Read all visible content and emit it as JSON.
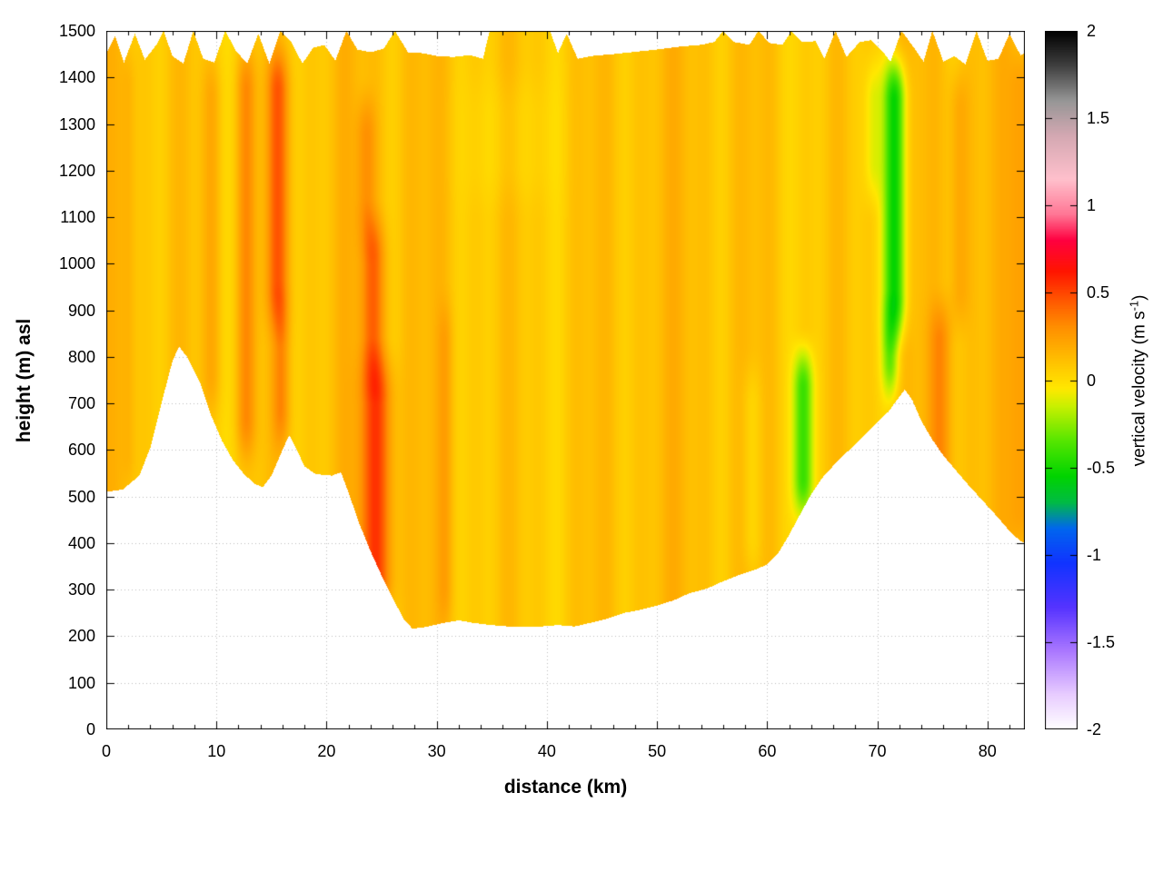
{
  "chart_data": {
    "type": "heatmap",
    "title": "",
    "xlabel": "distance (km)",
    "ylabel": "height (m) asl",
    "x_range": [
      0,
      83.4
    ],
    "y_range": [
      0,
      1500
    ],
    "x_tick_values": [
      0,
      10,
      20,
      30,
      40,
      50,
      60,
      70,
      80
    ],
    "x_tick_labels": [
      "0",
      "10",
      "20",
      "30",
      "40",
      "50",
      "60",
      "70",
      "80"
    ],
    "x_minor_step": 2,
    "y_tick_values": [
      0,
      100,
      200,
      300,
      400,
      500,
      600,
      700,
      800,
      900,
      1000,
      1100,
      1200,
      1300,
      1400,
      1500
    ],
    "y_tick_labels": [
      "0",
      "100",
      "200",
      "300",
      "400",
      "500",
      "600",
      "700",
      "800",
      "900",
      "1000",
      "1100",
      "1200",
      "1300",
      "1400",
      "1500"
    ],
    "grid": {
      "show": true,
      "color": "#bcbcbc",
      "style": "dotted"
    },
    "colorbar": {
      "label_prefix": "vertical velocity (m s",
      "label_sup": "-1",
      "label_suffix": ")",
      "range": [
        -2,
        2
      ],
      "tick_values": [
        -2,
        -1.5,
        -1,
        -0.5,
        0,
        0.5,
        1,
        1.5,
        2
      ],
      "tick_labels": [
        "-2",
        "-1.5",
        "-1",
        "-0.5",
        "0",
        "0.5",
        "1",
        "1.5",
        "2"
      ]
    },
    "palette_stops": [
      [
        -2.0,
        "#ffffff"
      ],
      [
        -1.8,
        "#e8ccff"
      ],
      [
        -1.55,
        "#aa77ff"
      ],
      [
        -1.3,
        "#5533ff"
      ],
      [
        -1.05,
        "#1133ff"
      ],
      [
        -0.85,
        "#0066ee"
      ],
      [
        -0.7,
        "#00bb44"
      ],
      [
        -0.55,
        "#00d400"
      ],
      [
        -0.35,
        "#55e600"
      ],
      [
        -0.15,
        "#c8f000"
      ],
      [
        -0.05,
        "#ffe800"
      ],
      [
        0.1,
        "#ffc300"
      ],
      [
        0.3,
        "#ff9000"
      ],
      [
        0.45,
        "#ff5a00"
      ],
      [
        0.62,
        "#ff1500"
      ],
      [
        0.8,
        "#ff0040"
      ],
      [
        0.95,
        "#ff7795"
      ],
      [
        1.15,
        "#ffc0cc"
      ],
      [
        1.4,
        "#d4a8b2"
      ],
      [
        1.6,
        "#969696"
      ],
      [
        1.8,
        "#3f3f3f"
      ],
      [
        2.0,
        "#000000"
      ]
    ],
    "field": {
      "background_value": 0.1,
      "stripe_waves": [
        {
          "freq": 0.85,
          "phase": 1.7,
          "amp": 0.045
        },
        {
          "freq": 2.1,
          "phase": 0.4,
          "amp": 0.028
        },
        {
          "freq": 0.23,
          "phase": 2.2,
          "amp": 0.025
        }
      ],
      "terrain_profile": [
        [
          0,
          510
        ],
        [
          1.5,
          515
        ],
        [
          3,
          545
        ],
        [
          4,
          605
        ],
        [
          5,
          700
        ],
        [
          6,
          790
        ],
        [
          6.6,
          822
        ],
        [
          7.4,
          798
        ],
        [
          8.5,
          745
        ],
        [
          9.5,
          675
        ],
        [
          10.5,
          620
        ],
        [
          11.5,
          578
        ],
        [
          12.5,
          548
        ],
        [
          13.5,
          527
        ],
        [
          14.2,
          520
        ],
        [
          15,
          545
        ],
        [
          16,
          600
        ],
        [
          16.6,
          632
        ],
        [
          17.2,
          605
        ],
        [
          18,
          565
        ],
        [
          19,
          548
        ],
        [
          20.5,
          545
        ],
        [
          21.3,
          552
        ],
        [
          22,
          508
        ],
        [
          23,
          440
        ],
        [
          24,
          382
        ],
        [
          25,
          330
        ],
        [
          26,
          282
        ],
        [
          27,
          237
        ],
        [
          27.8,
          216
        ],
        [
          29,
          220
        ],
        [
          30.5,
          228
        ],
        [
          32,
          234
        ],
        [
          33.5,
          228
        ],
        [
          35,
          224
        ],
        [
          37,
          220
        ],
        [
          39,
          220
        ],
        [
          41,
          224
        ],
        [
          42.5,
          221
        ],
        [
          44,
          229
        ],
        [
          45.5,
          238
        ],
        [
          47,
          250
        ],
        [
          48.5,
          257
        ],
        [
          50,
          266
        ],
        [
          51.5,
          277
        ],
        [
          53,
          293
        ],
        [
          54.5,
          302
        ],
        [
          56,
          318
        ],
        [
          57.5,
          332
        ],
        [
          59,
          344
        ],
        [
          60,
          354
        ],
        [
          61,
          378
        ],
        [
          62,
          418
        ],
        [
          63,
          462
        ],
        [
          64,
          505
        ],
        [
          65,
          540
        ],
        [
          66,
          566
        ],
        [
          67,
          590
        ],
        [
          68,
          612
        ],
        [
          69,
          636
        ],
        [
          70,
          660
        ],
        [
          71,
          682
        ],
        [
          72,
          714
        ],
        [
          72.5,
          730
        ],
        [
          73.2,
          706
        ],
        [
          74,
          662
        ],
        [
          75,
          622
        ],
        [
          76,
          588
        ],
        [
          77,
          560
        ],
        [
          78,
          532
        ],
        [
          79,
          506
        ],
        [
          80,
          480
        ],
        [
          81,
          454
        ],
        [
          82,
          426
        ],
        [
          83,
          404
        ],
        [
          83.4,
          400
        ]
      ],
      "ceiling_profile": [
        [
          0,
          1452
        ],
        [
          0.8,
          1490
        ],
        [
          1.6,
          1432
        ],
        [
          2.6,
          1494
        ],
        [
          3.5,
          1438
        ],
        [
          4.6,
          1472
        ],
        [
          5.2,
          1500
        ],
        [
          6,
          1446
        ],
        [
          7,
          1430
        ],
        [
          7.9,
          1500
        ],
        [
          8.8,
          1440
        ],
        [
          9.8,
          1432
        ],
        [
          10.8,
          1500
        ],
        [
          11.8,
          1456
        ],
        [
          12.8,
          1430
        ],
        [
          13.8,
          1494
        ],
        [
          14.8,
          1430
        ],
        [
          15.8,
          1500
        ],
        [
          16.8,
          1476
        ],
        [
          17.8,
          1430
        ],
        [
          18.8,
          1464
        ],
        [
          19.8,
          1470
        ],
        [
          20.8,
          1436
        ],
        [
          21.8,
          1500
        ],
        [
          22.8,
          1460
        ],
        [
          24,
          1454
        ],
        [
          25.2,
          1462
        ],
        [
          26.2,
          1500
        ],
        [
          27.4,
          1454
        ],
        [
          28.8,
          1452
        ],
        [
          30,
          1446
        ],
        [
          31.5,
          1444
        ],
        [
          33,
          1448
        ],
        [
          34.2,
          1440
        ],
        [
          34.8,
          1500
        ],
        [
          40.3,
          1500
        ],
        [
          41,
          1452
        ],
        [
          41.8,
          1494
        ],
        [
          42.8,
          1440
        ],
        [
          44,
          1446
        ],
        [
          46,
          1450
        ],
        [
          48,
          1455
        ],
        [
          50,
          1460
        ],
        [
          52,
          1466
        ],
        [
          54,
          1470
        ],
        [
          55.2,
          1476
        ],
        [
          56,
          1500
        ],
        [
          57,
          1476
        ],
        [
          58.4,
          1470
        ],
        [
          59.2,
          1500
        ],
        [
          60.2,
          1474
        ],
        [
          61.4,
          1470
        ],
        [
          62.2,
          1500
        ],
        [
          63.2,
          1476
        ],
        [
          64.4,
          1478
        ],
        [
          65.2,
          1440
        ],
        [
          66.2,
          1500
        ],
        [
          67.2,
          1444
        ],
        [
          68.4,
          1476
        ],
        [
          69.4,
          1480
        ],
        [
          70.4,
          1458
        ],
        [
          71.2,
          1434
        ],
        [
          72.2,
          1500
        ],
        [
          73.2,
          1468
        ],
        [
          74.2,
          1434
        ],
        [
          75,
          1500
        ],
        [
          76,
          1434
        ],
        [
          77,
          1446
        ],
        [
          78,
          1428
        ],
        [
          79,
          1500
        ],
        [
          80,
          1436
        ],
        [
          81,
          1440
        ],
        [
          82,
          1494
        ],
        [
          83,
          1448
        ],
        [
          83.4,
          1452
        ]
      ],
      "anomalies": [
        {
          "cx": 2.0,
          "sx": 0.7,
          "z0": 520,
          "z1": 1450,
          "amp": 0.09
        },
        {
          "cx": 9.6,
          "sx": 0.9,
          "z0": 700,
          "z1": 1420,
          "amp": 0.12
        },
        {
          "cx": 12.7,
          "sx": 0.9,
          "z0": 600,
          "z1": 1440,
          "amp": 0.22
        },
        {
          "cx": 15.6,
          "sx": 1.0,
          "z0": 880,
          "z1": 1440,
          "amp": 0.32
        },
        {
          "cx": 15.9,
          "sx": 0.8,
          "z0": 620,
          "z1": 900,
          "amp": 0.2
        },
        {
          "cx": 24.5,
          "sx": 1.4,
          "z0": 260,
          "z1": 780,
          "amp": 0.42
        },
        {
          "cx": 24.2,
          "sx": 1.1,
          "z0": 760,
          "z1": 1080,
          "amp": 0.3
        },
        {
          "cx": 23.6,
          "sx": 0.9,
          "z0": 1060,
          "z1": 1340,
          "amp": 0.17
        },
        {
          "cx": 30.8,
          "sx": 0.7,
          "z0": 240,
          "z1": 900,
          "amp": 0.1
        },
        {
          "cx": 36.5,
          "sx": 4.0,
          "z0": 1150,
          "z1": 1380,
          "amp": -0.05
        },
        {
          "cx": 58.6,
          "sx": 0.9,
          "z0": 350,
          "z1": 760,
          "amp": -0.09
        },
        {
          "cx": 63.3,
          "sx": 0.9,
          "z0": 470,
          "z1": 800,
          "amp": -0.48
        },
        {
          "cx": 69.6,
          "sx": 0.8,
          "z0": 1150,
          "z1": 1420,
          "amp": -0.16
        },
        {
          "cx": 71.6,
          "sx": 1.0,
          "z0": 860,
          "z1": 1420,
          "amp": -0.62
        },
        {
          "cx": 71.2,
          "sx": 0.8,
          "z0": 730,
          "z1": 880,
          "amp": -0.38
        },
        {
          "cx": 75.8,
          "sx": 1.1,
          "z0": 430,
          "z1": 900,
          "amp": 0.2
        },
        {
          "cx": 77.4,
          "sx": 0.9,
          "z0": 880,
          "z1": 1400,
          "amp": 0.13
        },
        {
          "cx": 83.0,
          "sx": 1.0,
          "z0": 400,
          "z1": 1450,
          "amp": 0.14
        }
      ]
    }
  }
}
